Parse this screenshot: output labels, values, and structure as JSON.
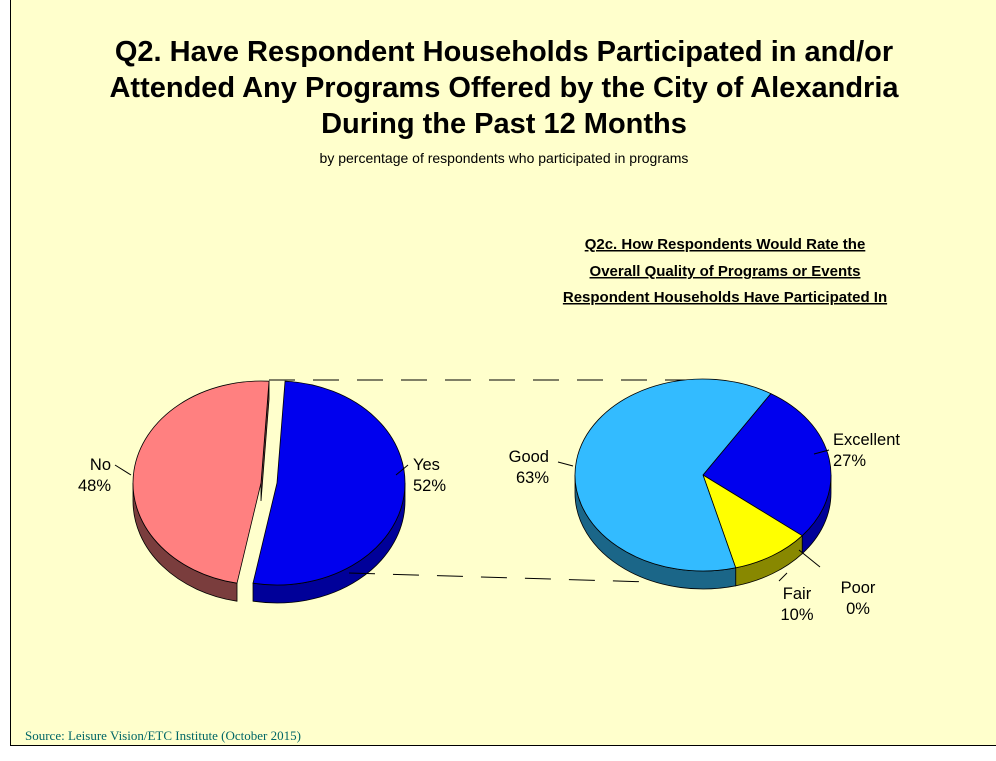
{
  "title_lines": [
    "Q2. Have Respondent Households Participated in and/or",
    "Attended Any Programs Offered by the City of Alexandria",
    "During the Past 12 Months"
  ],
  "subtitle": "by percentage of respondents who participated in programs",
  "source": "Source:  Leisure Vision/ETC Institute (October 2015)",
  "chart_data": [
    {
      "type": "pie",
      "labels": [
        "Yes",
        "No"
      ],
      "values": [
        52,
        48
      ],
      "value_labels": [
        "52%",
        "48%"
      ],
      "colors": [
        "#0000ee",
        "#ff8080"
      ],
      "side_colors": [
        "#000099",
        "#7a3d3d"
      ],
      "exploded": "Yes"
    },
    {
      "type": "pie",
      "title_lines": [
        "Q2c. How Respondents Would Rate the",
        "Overall Quality of Programs or Events",
        "Respondent Households Have Participated In"
      ],
      "labels": [
        "Excellent",
        "Poor",
        "Fair",
        "Good"
      ],
      "values": [
        27,
        0,
        10,
        63
      ],
      "value_labels": [
        "27%",
        "0%",
        "10%",
        "63%"
      ],
      "colors": [
        "#0000ee",
        "#000000",
        "#ffff00",
        "#33bbff"
      ],
      "side_colors": [
        "#000099",
        "#000000",
        "#888800",
        "#1b6688"
      ]
    }
  ]
}
